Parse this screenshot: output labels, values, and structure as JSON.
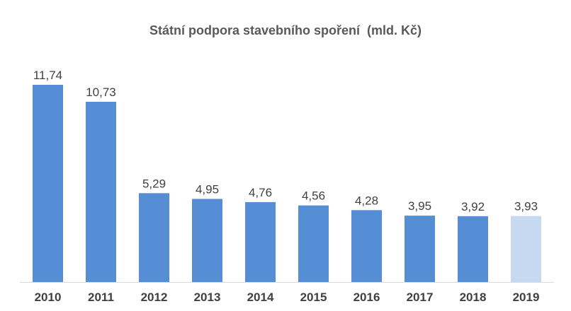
{
  "chart_data": {
    "type": "bar",
    "title": "Státní podpora stavebního spoření  (mld. Kč)",
    "categories": [
      "2010",
      "2011",
      "2012",
      "2013",
      "2014",
      "2015",
      "2016",
      "2017",
      "2018",
      "2019"
    ],
    "values": [
      11.74,
      10.73,
      5.29,
      4.95,
      4.76,
      4.56,
      4.28,
      3.95,
      3.92,
      3.93
    ],
    "value_labels": [
      "11,74",
      "10,73",
      "5,29",
      "4,95",
      "4,76",
      "4,56",
      "4,28",
      "3,95",
      "3,92",
      "3,93"
    ],
    "highlight_index": 9,
    "colors": {
      "bar": "#558ED5",
      "bar_highlight": "#C6D9F1",
      "axis": "#D9D9D9"
    },
    "ylim": [
      0,
      11.74
    ],
    "grid": false,
    "xlabel": "",
    "ylabel": ""
  }
}
